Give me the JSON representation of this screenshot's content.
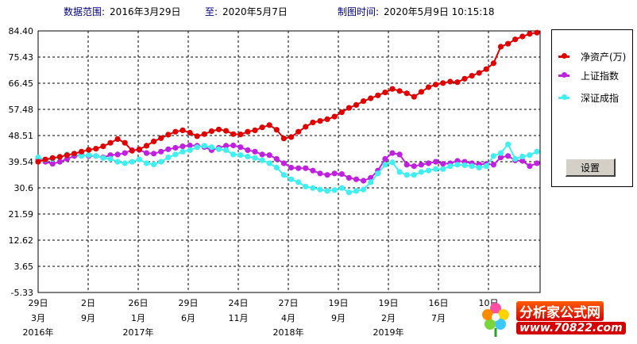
{
  "header": {
    "range_label": "数据范围:",
    "range_start": "2016年3月29日",
    "range_to_label": "至:",
    "range_end": "2020年5月7日",
    "made_label": "制图时间:",
    "made_time": "2020年5月9日  10:15:18"
  },
  "legend": {
    "items": [
      {
        "label": "净资产(万)",
        "color": "#e00000"
      },
      {
        "label": "上证指数",
        "color": "#c020e0"
      },
      {
        "label": "深证成指",
        "color": "#40f0f0"
      }
    ],
    "button_label": "设置"
  },
  "watermark": {
    "title": "分析家公式网",
    "url": "www.70822.com"
  },
  "chart_data": {
    "type": "line",
    "y_ticks": [
      "84.40",
      "75.43",
      "66.45",
      "57.48",
      "48.51",
      "39.54",
      "30.6",
      "21.59",
      "12.62",
      "3.65",
      "-5.33"
    ],
    "ylim": [
      -5.33,
      84.4
    ],
    "x_day_labels": [
      "29日",
      "2日",
      "26日",
      "29日",
      "24日",
      "27日",
      "19日",
      "19日",
      "16日",
      "10日"
    ],
    "x_month_labels": [
      "3月",
      "9月",
      "1月",
      "6月",
      "11月",
      "4月",
      "9月",
      "2月",
      "7月",
      ""
    ],
    "x_year_labels": [
      "2016年",
      "2017年",
      "2018年",
      "2019年"
    ],
    "grid": true,
    "legend_position": "right",
    "series": [
      {
        "name": "净资产(万)",
        "color": "#e00000",
        "values": [
          39.5,
          40.3,
          40.8,
          41.2,
          41.8,
          42.3,
          43.0,
          43.6,
          44.0,
          44.8,
          46.0,
          47.3,
          46.0,
          43.3,
          43.8,
          45.0,
          46.5,
          47.6,
          48.8,
          49.8,
          50.3,
          49.5,
          48.3,
          49.0,
          50.0,
          50.6,
          50.1,
          49.0,
          48.9,
          49.8,
          50.3,
          51.3,
          52.1,
          50.5,
          47.5,
          48.0,
          49.8,
          51.5,
          53.0,
          53.5,
          54.1,
          55.0,
          56.5,
          58.0,
          59.0,
          60.3,
          61.3,
          62.3,
          63.3,
          64.5,
          63.8,
          63.0,
          61.8,
          63.5,
          65.1,
          66.0,
          66.5,
          67.0,
          66.8,
          68.0,
          69.0,
          70.0,
          71.3,
          73.3,
          79.0,
          80.0,
          81.5,
          82.5,
          83.4,
          83.8
        ]
      },
      {
        "name": "上证指数",
        "color": "#c020e0",
        "values": [
          40.5,
          39.5,
          38.8,
          39.5,
          40.5,
          41.5,
          41.8,
          41.5,
          41.5,
          41.0,
          41.8,
          42.0,
          42.5,
          43.5,
          43.6,
          42.5,
          42.3,
          43.0,
          43.8,
          44.3,
          44.8,
          45.1,
          45.0,
          44.6,
          43.5,
          44.3,
          45.0,
          45.1,
          44.5,
          43.5,
          43.0,
          42.0,
          41.8,
          40.5,
          39.0,
          37.5,
          37.3,
          37.3,
          36.5,
          35.5,
          35.0,
          35.5,
          35.3,
          34.0,
          33.5,
          33.0,
          34.0,
          36.5,
          40.5,
          42.5,
          42.0,
          38.5,
          38.0,
          38.5,
          39.0,
          39.5,
          38.8,
          39.0,
          39.8,
          39.5,
          39.0,
          38.6,
          38.8,
          38.5,
          41.0,
          41.5,
          40.0,
          39.8,
          38.0,
          39.0
        ]
      },
      {
        "name": "深证成指",
        "color": "#40f0f0",
        "values": [
          41.0,
          40.2,
          40.5,
          41.2,
          42.0,
          42.2,
          41.5,
          41.8,
          41.5,
          40.8,
          40.5,
          39.5,
          39.0,
          39.5,
          40.3,
          39.0,
          38.6,
          39.5,
          41.0,
          42.0,
          43.0,
          43.5,
          44.5,
          45.0,
          44.5,
          43.8,
          43.5,
          42.0,
          41.8,
          41.3,
          40.8,
          40.0,
          39.0,
          37.5,
          35.0,
          33.5,
          32.5,
          31.0,
          30.5,
          30.0,
          29.5,
          29.8,
          30.5,
          29.0,
          29.5,
          30.0,
          32.5,
          35.5,
          38.5,
          39.3,
          36.0,
          35.0,
          35.0,
          36.0,
          36.5,
          37.0,
          37.0,
          38.0,
          38.5,
          38.3,
          38.0,
          37.5,
          38.0,
          41.5,
          42.5,
          45.5,
          40.5,
          41.3,
          41.8,
          43.0
        ]
      }
    ]
  }
}
